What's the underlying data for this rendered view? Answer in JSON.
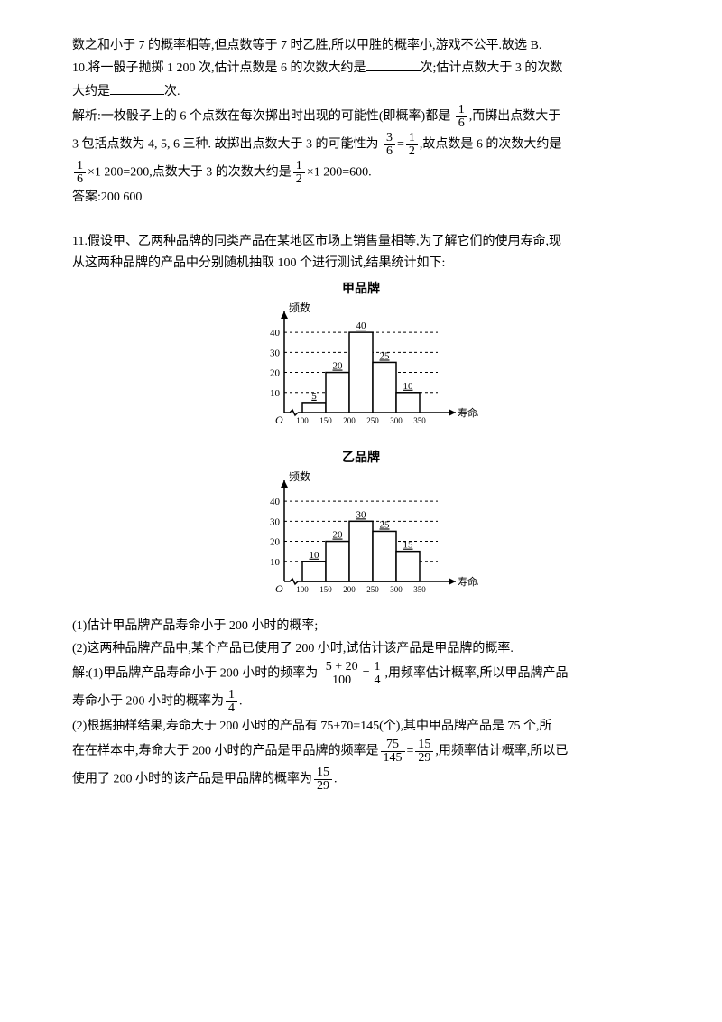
{
  "intro": {
    "l1": "数之和小于 7 的概率相等,但点数等于 7 时乙胜,所以甲胜的概率小,游戏不公平.故选 B."
  },
  "q10": {
    "l1a": "10.将一骰子抛掷 1 200 次,估计点数是 6 的次数大约是",
    "l1b": "次;估计点数大于 3 的次数",
    "l2a": "大约是",
    "l2b": "次.",
    "s1a": "解析:一枚骰子上的 6 个点数在每次掷出时出现的可能性(即概率)都是",
    "s1b": ",而掷出点数大于",
    "f1n": "1",
    "f1d": "6",
    "s2a": "3 包括点数为 4, 5, 6 三种. 故掷出点数大于 3 的可能性为",
    "f2n": "3",
    "f2d": "6",
    "s2eq": "=",
    "f3n": "1",
    "f3d": "2",
    "s2b": ",故点数是 6 的次数大约是",
    "f4n": "1",
    "f4d": "6",
    "s3a": "×1 200=200,点数大于 3 的次数大约是",
    "f5n": "1",
    "f5d": "2",
    "s3b": "×1 200=600.",
    "ans": "答案:200  600"
  },
  "q11": {
    "l1": "11.假设甲、乙两种品牌的同类产品在某地区市场上销售量相等,为了解它们的使用寿命,现",
    "l2": "从这两种品牌的产品中分别随机抽取 100 个进行测试,结果统计如下:",
    "chart1": {
      "title": "甲品牌",
      "ylabel": "频数",
      "xlabel": "寿命/小时",
      "ylim": [
        0,
        45
      ],
      "yticks": [
        10,
        20,
        30,
        40
      ],
      "xcats": [
        "100",
        "150",
        "200",
        "250",
        "300",
        "350"
      ],
      "bars": [
        {
          "v": 5,
          "label": "5",
          "color": "#ffffff"
        },
        {
          "v": 20,
          "label": "20",
          "color": "#ffffff"
        },
        {
          "v": 40,
          "label": "40",
          "color": "#ffffff"
        },
        {
          "v": 25,
          "label": "25",
          "color": "#ffffff"
        },
        {
          "v": 10,
          "label": "10",
          "color": "#ffffff"
        }
      ]
    },
    "chart2": {
      "title": "乙品牌",
      "ylabel": "频数",
      "xlabel": "寿命/小时",
      "ylim": [
        0,
        45
      ],
      "yticks": [
        10,
        20,
        30,
        40
      ],
      "xcats": [
        "100",
        "150",
        "200",
        "250",
        "300",
        "350"
      ],
      "bars": [
        {
          "v": 10,
          "label": "10",
          "color": "#ffffff"
        },
        {
          "v": 20,
          "label": "20",
          "color": "#ffffff"
        },
        {
          "v": 30,
          "label": "30",
          "color": "#ffffff"
        },
        {
          "v": 25,
          "label": "25",
          "color": "#ffffff"
        },
        {
          "v": 15,
          "label": "15",
          "color": "#ffffff"
        }
      ]
    },
    "p1": "(1)估计甲品牌产品寿命小于 200 小时的概率;",
    "p2": "(2)这两种品牌产品中,某个产品已使用了 200 小时,试估计该产品是甲品牌的概率.",
    "a1a": "解:(1)甲品牌产品寿命小于 200 小时的频率为",
    "fA1n": "5 + 20",
    "fA1d": "100",
    "a1eq": "=",
    "fA2n": "1",
    "fA2d": "4",
    "a1b": ",用频率估计概率,所以甲品牌产品",
    "a1c": "寿命小于 200 小时的概率为",
    "fA3n": "1",
    "fA3d": "4",
    "a1d": ".",
    "a2a": "(2)根据抽样结果,寿命大于 200 小时的产品有 75+70=145(个),其中甲品牌产品是 75 个,所",
    "a2b": "在在样本中,寿命大于 200 小时的产品是甲品牌的频率是",
    "fB1n": "75",
    "fB1d": "145",
    "a2eq": "=",
    "fB2n": "15",
    "fB2d": "29",
    "a2c": ",用频率估计概率,所以已",
    "a2d": "使用了 200 小时的该产品是甲品牌的概率为",
    "fB3n": "15",
    "fB3d": "29",
    "a2e": "."
  }
}
